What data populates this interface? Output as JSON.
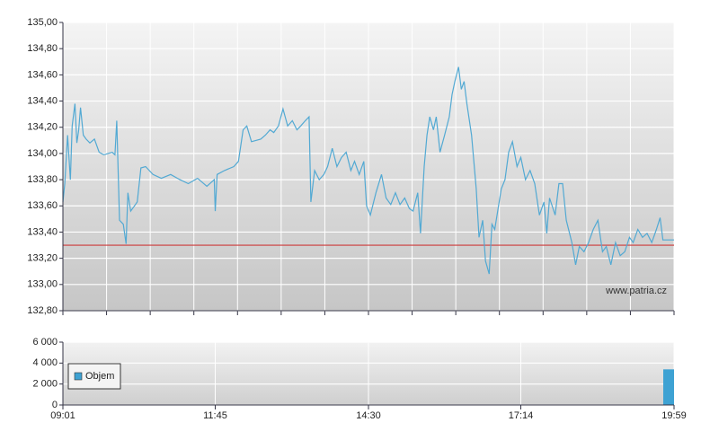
{
  "chart_data": [
    {
      "type": "line",
      "color": "#52a9d3",
      "annotation": "www.patria.cz",
      "reference_line": {
        "value": 133.3,
        "color": "#cc3b3b"
      },
      "xlim": [
        "09:01",
        "19:59"
      ],
      "ylim": [
        132.8,
        135
      ],
      "yticks": [
        {
          "value": 132.8,
          "label": "132,80"
        },
        {
          "value": 133,
          "label": "133,00"
        },
        {
          "value": 133.2,
          "label": "133,20"
        },
        {
          "value": 133.4,
          "label": "133,40"
        },
        {
          "value": 133.6,
          "label": "133,60"
        },
        {
          "value": 133.8,
          "label": "133,80"
        },
        {
          "value": 134,
          "label": "134,00"
        },
        {
          "value": 134.2,
          "label": "134,20"
        },
        {
          "value": 134.4,
          "label": "134,40"
        },
        {
          "value": 134.6,
          "label": "134,60"
        },
        {
          "value": 134.8,
          "label": "134,80"
        },
        {
          "value": 135,
          "label": "135,00"
        }
      ],
      "x": [
        "09:01",
        "09:03",
        "09:06",
        "09:09",
        "09:11",
        "09:14",
        "09:16",
        "09:18",
        "09:20",
        "09:23",
        "09:26",
        "09:30",
        "09:35",
        "09:40",
        "09:45",
        "09:54",
        "09:57",
        "09:59",
        "10:02",
        "10:06",
        "10:09",
        "10:11",
        "10:14",
        "10:18",
        "10:21",
        "10:25",
        "10:30",
        "10:38",
        "10:47",
        "10:57",
        "11:07",
        "11:16",
        "11:26",
        "11:36",
        "11:44",
        "11:45",
        "11:47",
        "11:55",
        "12:05",
        "12:10",
        "12:15",
        "12:19",
        "12:24",
        "12:34",
        "12:39",
        "12:44",
        "12:48",
        "12:53",
        "12:58",
        "13:03",
        "13:08",
        "13:13",
        "13:17",
        "13:22",
        "13:26",
        "13:28",
        "13:32",
        "13:37",
        "13:42",
        "13:46",
        "13:51",
        "13:56",
        "14:01",
        "14:06",
        "14:11",
        "14:15",
        "14:20",
        "14:25",
        "14:28",
        "14:32",
        "14:38",
        "14:44",
        "14:49",
        "14:54",
        "14:59",
        "15:04",
        "15:09",
        "15:14",
        "15:18",
        "15:23",
        "15:26",
        "15:30",
        "15:33",
        "15:36",
        "15:40",
        "15:43",
        "15:47",
        "15:52",
        "15:57",
        "16:00",
        "16:03",
        "16:07",
        "16:10",
        "16:13",
        "16:16",
        "16:21",
        "16:26",
        "16:29",
        "16:33",
        "16:36",
        "16:40",
        "16:43",
        "16:46",
        "16:50",
        "16:53",
        "16:57",
        "17:01",
        "17:05",
        "17:10",
        "17:14",
        "17:19",
        "17:24",
        "17:29",
        "17:34",
        "17:39",
        "17:42",
        "17:45",
        "17:51",
        "17:55",
        "17:59",
        "18:03",
        "18:09",
        "18:13",
        "18:17",
        "18:22",
        "18:27",
        "18:32",
        "18:37",
        "18:42",
        "18:46",
        "18:51",
        "18:56",
        "19:01",
        "19:06",
        "19:11",
        "19:15",
        "19:20",
        "19:25",
        "19:30",
        "19:35",
        "19:40",
        "19:44",
        "19:47",
        "19:59"
      ],
      "values": [
        133.63,
        133.77,
        134.14,
        133.8,
        134.21,
        134.38,
        134.08,
        134.18,
        134.35,
        134.14,
        134.11,
        134.08,
        134.11,
        134.01,
        133.99,
        134.01,
        133.99,
        134.25,
        133.49,
        133.46,
        133.31,
        133.7,
        133.56,
        133.6,
        133.63,
        133.89,
        133.9,
        133.84,
        133.81,
        133.84,
        133.8,
        133.77,
        133.81,
        133.75,
        133.8,
        133.56,
        133.84,
        133.87,
        133.9,
        133.94,
        134.18,
        134.21,
        134.09,
        134.11,
        134.14,
        134.18,
        134.16,
        134.21,
        134.34,
        134.21,
        134.25,
        134.18,
        134.21,
        134.25,
        134.28,
        133.63,
        133.87,
        133.8,
        133.84,
        133.9,
        134.04,
        133.9,
        133.97,
        134.01,
        133.87,
        133.94,
        133.84,
        133.94,
        133.6,
        133.53,
        133.7,
        133.84,
        133.66,
        133.61,
        133.7,
        133.61,
        133.66,
        133.58,
        133.56,
        133.7,
        133.39,
        133.9,
        134.14,
        134.28,
        134.18,
        134.28,
        134.01,
        134.14,
        134.28,
        134.45,
        134.55,
        134.66,
        134.49,
        134.55,
        134.38,
        134.14,
        133.73,
        133.36,
        133.49,
        133.18,
        133.08,
        133.46,
        133.42,
        133.6,
        133.73,
        133.8,
        134.01,
        134.09,
        133.9,
        133.97,
        133.8,
        133.87,
        133.77,
        133.53,
        133.63,
        133.39,
        133.66,
        133.53,
        133.77,
        133.77,
        133.49,
        133.32,
        133.15,
        133.29,
        133.25,
        133.32,
        133.42,
        133.49,
        133.25,
        133.29,
        133.15,
        133.32,
        133.22,
        133.25,
        133.36,
        133.32,
        133.42,
        133.36,
        133.39,
        133.32,
        133.42,
        133.51,
        133.34,
        133.34
      ]
    },
    {
      "type": "bar",
      "legend": "upper left",
      "xlim": [
        "09:01",
        "19:59"
      ],
      "xticks": [
        "09:01",
        "11:45",
        "14:30",
        "17:14",
        "19:59"
      ],
      "ylim": [
        0,
        6000
      ],
      "yticks": [
        0,
        {
          "value": 2000,
          "label": "2 000"
        },
        {
          "value": 4000,
          "label": "4 000"
        },
        {
          "value": 6000,
          "label": "6 000"
        }
      ],
      "x": [
        "19:59"
      ],
      "series": [
        {
          "name": "Objem",
          "color": "#3ea2d3",
          "values": [
            3400
          ]
        }
      ]
    }
  ]
}
